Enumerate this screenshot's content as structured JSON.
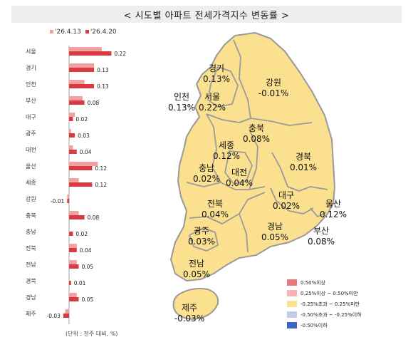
{
  "title": "< 시도별 아파트 전세가격지수 변동률 >",
  "legend": {
    "prev_label": "'26.4.13",
    "curr_label": "'26.4.20",
    "prev_color": "#f2a0a0",
    "curr_color": "#d93a42"
  },
  "unit_note": "(단위 : 전주 대비, %)",
  "chart_data": {
    "type": "bar",
    "orientation": "horizontal",
    "categories": [
      "서울",
      "경기",
      "인천",
      "부산",
      "대구",
      "광주",
      "대전",
      "울산",
      "세종",
      "강원",
      "충북",
      "충남",
      "전북",
      "전남",
      "경북",
      "경남",
      "제주"
    ],
    "series": [
      {
        "name": "'26.4.13",
        "values": [
          0.17,
          0.13,
          0.08,
          0.07,
          0.03,
          0.01,
          0.02,
          0.15,
          0.05,
          -0.01,
          0.05,
          0.0,
          0.04,
          0.04,
          0.0,
          0.04,
          -0.02
        ]
      },
      {
        "name": "'26.4.20",
        "values": [
          0.22,
          0.13,
          0.13,
          0.08,
          0.02,
          0.03,
          0.04,
          0.12,
          0.12,
          -0.01,
          0.08,
          0.02,
          0.04,
          0.05,
          0.01,
          0.05,
          -0.03
        ]
      }
    ],
    "data_labels": [
      "0.22",
      "0.13",
      "0.13",
      "0.08",
      "0.02",
      "0.03",
      "0.04",
      "0.12",
      "0.12",
      "-0.01",
      "0.08",
      "0.02",
      "0.04",
      "0.05",
      "0.01",
      "0.05",
      "-0.03"
    ]
  },
  "map": {
    "regions": [
      {
        "name": "경기",
        "value": "0.13%"
      },
      {
        "name": "서울",
        "value": "0.22%"
      },
      {
        "name": "인천",
        "value": "0.13%"
      },
      {
        "name": "강원",
        "value": "-0.01%"
      },
      {
        "name": "충북",
        "value": "0.08%"
      },
      {
        "name": "세종",
        "value": "0.12%"
      },
      {
        "name": "충남",
        "value": "0.02%"
      },
      {
        "name": "대전",
        "value": "0.04%"
      },
      {
        "name": "경북",
        "value": "0.01%"
      },
      {
        "name": "대구",
        "value": "0.02%"
      },
      {
        "name": "울산",
        "value": "0.12%"
      },
      {
        "name": "전북",
        "value": "0.04%"
      },
      {
        "name": "경남",
        "value": "0.05%"
      },
      {
        "name": "부산",
        "value": "0.08%"
      },
      {
        "name": "광주",
        "value": "0.03%"
      },
      {
        "name": "전남",
        "value": "0.05%"
      },
      {
        "name": "제주",
        "value": "-0.03%"
      }
    ],
    "fill_color": "#fbe08f",
    "border_color": "#999999",
    "legend": [
      {
        "label": "0.50%이상",
        "color": "#e8787c"
      },
      {
        "label": "0.25%이상 ~ 0.50%미만",
        "color": "#f5b3b5"
      },
      {
        "label": "-0.25%초과 ~ 0.25%미만",
        "color": "#fbe08f"
      },
      {
        "label": "-0.50%초과 ~ -0.25%이하",
        "color": "#c3cde8"
      },
      {
        "label": "-0.50%이하",
        "color": "#3d66c4"
      }
    ]
  }
}
